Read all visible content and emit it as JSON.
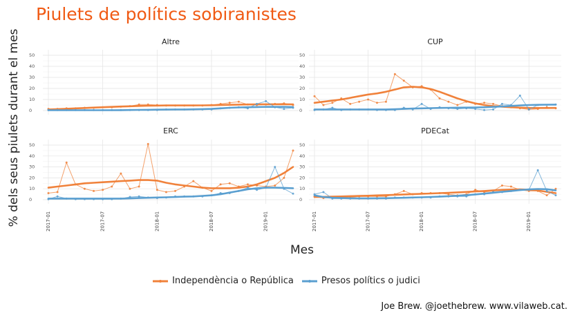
{
  "title": "Piulets de polítics sobiranistes",
  "caption": "Joe Brew. @joethebrew. www.vilaweb.cat.",
  "legend": {
    "items": [
      {
        "label": "Independència o República",
        "color": "#f0813a"
      },
      {
        "label": "Presos polítics o judici",
        "color": "#5a9fd0"
      }
    ]
  },
  "chart_data": {
    "type": "line",
    "title": "Piulets de polítics sobiranistes",
    "xlabel": "Mes",
    "ylabel": "% dels seus piulets durant el mes",
    "ylim": [
      0,
      50
    ],
    "yticks": [
      0,
      10,
      20,
      30,
      40,
      50
    ],
    "x": [
      "2017-01",
      "2017-02",
      "2017-03",
      "2017-04",
      "2017-05",
      "2017-06",
      "2017-07",
      "2017-08",
      "2017-09",
      "2017-10",
      "2017-11",
      "2017-12",
      "2018-01",
      "2018-02",
      "2018-03",
      "2018-04",
      "2018-05",
      "2018-06",
      "2018-07",
      "2018-08",
      "2018-09",
      "2018-10",
      "2018-11",
      "2018-12",
      "2019-01",
      "2019-02",
      "2019-03",
      "2019-04"
    ],
    "xticks": [
      "2017-01",
      "2017-07",
      "2018-01",
      "2018-07",
      "2019-01"
    ],
    "grid": true,
    "legend_position": "bottom",
    "facets": [
      {
        "name": "Altre",
        "series": [
          {
            "name": "Independència o República",
            "values": [
              1.5,
              1.5,
              2,
              2,
              2.5,
              2.5,
              3,
              3,
              3.5,
              4,
              5.5,
              5.5,
              5,
              4.5,
              4.5,
              4.5,
              4.5,
              4.5,
              5,
              6,
              7,
              8,
              5.5,
              5,
              5.5,
              6,
              6.5,
              5
            ],
            "trend": [
              1,
              1.3,
              1.6,
              2,
              2.3,
              2.7,
              3,
              3.3,
              3.6,
              3.9,
              4.2,
              4.4,
              4.5,
              4.6,
              4.6,
              4.6,
              4.6,
              4.7,
              4.8,
              5,
              5.2,
              5.4,
              5.5,
              5.6,
              5.7,
              5.7,
              5.7,
              5.6
            ]
          },
          {
            "name": "Presos polítics o judici",
            "values": [
              0.5,
              0.5,
              0.5,
              0.5,
              0.5,
              0.5,
              0.5,
              0.5,
              0.5,
              0.5,
              0.5,
              0.5,
              0.5,
              1,
              1,
              1,
              1,
              1,
              1,
              2,
              2.5,
              3,
              2,
              6,
              8.5,
              3,
              1.5,
              2.5
            ],
            "trend": [
              0.3,
              0.3,
              0.3,
              0.3,
              0.3,
              0.3,
              0.3,
              0.3,
              0.4,
              0.5,
              0.6,
              0.7,
              0.8,
              0.9,
              1,
              1,
              1.1,
              1.3,
              1.5,
              2,
              2.5,
              2.8,
              3,
              3.2,
              3.3,
              3.3,
              3.3,
              3.2
            ]
          }
        ]
      },
      {
        "name": "CUP",
        "series": [
          {
            "name": "Independència o República",
            "values": [
              13,
              5,
              7,
              11,
              6,
              8,
              10,
              7,
              8,
              33,
              27,
              21,
              22,
              19,
              11,
              8,
              5,
              8,
              6,
              7,
              6,
              4,
              3,
              2,
              1,
              1.5,
              3,
              2
            ],
            "trend": [
              7,
              8,
              9,
              10,
              11.5,
              13,
              14.5,
              15.5,
              17,
              19,
              21,
              21.5,
              21,
              19.5,
              17,
              14,
              11,
              8.5,
              6.5,
              5,
              4,
              3.5,
              3,
              2.6,
              2.4,
              2.3,
              2.3,
              2.4
            ]
          },
          {
            "name": "Presos polítics o judici",
            "values": [
              0.5,
              1,
              2.5,
              0.5,
              1,
              1,
              1,
              0.5,
              0.5,
              0.5,
              2.5,
              1,
              6,
              1.5,
              3,
              2,
              1.5,
              2,
              1.5,
              0.5,
              1,
              6,
              5,
              13.5,
              1,
              5,
              5,
              5.5
            ],
            "trend": [
              1,
              1,
              1,
              1,
              1,
              1,
              1,
              1,
              1,
              1.2,
              1.5,
              1.8,
              2,
              2.2,
              2.4,
              2.5,
              2.6,
              2.7,
              2.8,
              3,
              3.3,
              3.7,
              4.2,
              4.6,
              5,
              5.2,
              5.3,
              5.4
            ]
          }
        ]
      },
      {
        "name": "ERC",
        "series": [
          {
            "name": "Independència o República",
            "values": [
              6,
              7,
              34,
              14,
              10,
              8,
              9,
              12,
              24,
              10,
              12,
              51,
              9,
              7,
              8,
              12,
              17,
              11,
              8,
              14,
              15,
              12,
              14,
              13,
              12,
              13,
              20,
              45
            ],
            "trend": [
              11,
              12,
              13,
              14,
              15,
              15.5,
              16,
              16.5,
              17,
              17.5,
              18,
              18,
              17.5,
              15.5,
              14,
              13,
              12,
              11,
              10.5,
              10.5,
              10.5,
              11,
              12,
              14,
              17,
              20,
              24.5,
              30
            ]
          },
          {
            "name": "Presos polítics o judici",
            "values": [
              0.5,
              3,
              1,
              0.5,
              0.5,
              0.5,
              0.5,
              0.5,
              1,
              2.5,
              3,
              2,
              1.5,
              2,
              3,
              3,
              3,
              3,
              4,
              6,
              6,
              8,
              11,
              9,
              11,
              30,
              10,
              5.5
            ],
            "trend": [
              1,
              1,
              1,
              1,
              1,
              1,
              1,
              1,
              1,
              1.2,
              1.5,
              1.8,
              2,
              2.2,
              2.5,
              2.8,
              3,
              3.5,
              4,
              5,
              6.5,
              8,
              9.5,
              10.5,
              11,
              11,
              10.8,
              10.5
            ]
          }
        ]
      },
      {
        "name": "PDECat",
        "series": [
          {
            "name": "Independència o República",
            "values": [
              3,
              1.5,
              2,
              2.5,
              2,
              3,
              3,
              3,
              3,
              5,
              8,
              5,
              6,
              6,
              6,
              5,
              4,
              5,
              9,
              7,
              8,
              13,
              12,
              9,
              8,
              8,
              4,
              10
            ],
            "trend": [
              2.5,
              2.6,
              2.8,
              3,
              3.2,
              3.4,
              3.6,
              3.9,
              4.2,
              4.5,
              4.8,
              5.1,
              5.4,
              5.7,
              6,
              6.3,
              6.7,
              7.1,
              7.5,
              8,
              8.5,
              9,
              9.3,
              9.4,
              9.2,
              8.5,
              7.2,
              6
            ]
          },
          {
            "name": "Presos polítics o judici",
            "values": [
              5,
              7,
              1,
              1,
              1,
              1,
              1,
              1,
              1,
              2,
              2,
              2,
              2,
              2,
              3,
              3,
              3,
              3,
              5,
              5,
              7,
              7,
              8,
              9,
              9,
              27,
              8,
              4
            ],
            "trend": [
              4,
              2.5,
              1.8,
              1.5,
              1.3,
              1.2,
              1.2,
              1.3,
              1.4,
              1.6,
              1.8,
              2,
              2.2,
              2.5,
              2.8,
              3.2,
              3.6,
              4.2,
              4.8,
              5.6,
              6.4,
              7.2,
              8,
              8.8,
              9.4,
              9.8,
              9.6,
              8.5
            ]
          }
        ]
      }
    ]
  }
}
